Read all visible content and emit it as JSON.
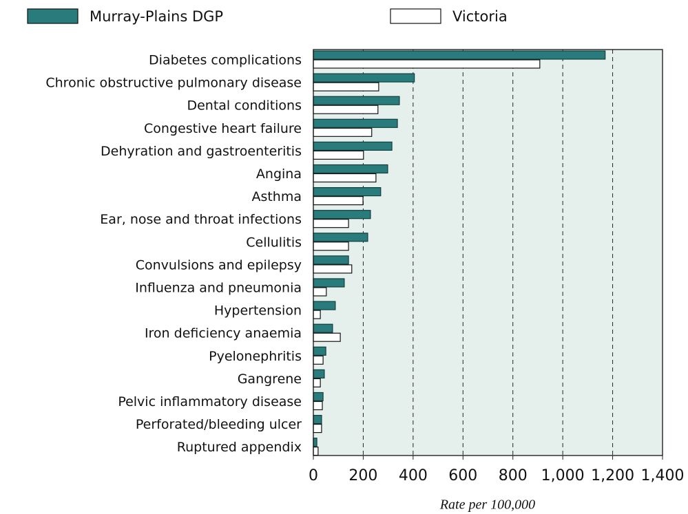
{
  "chart_data": {
    "type": "hbar",
    "xlabel": "Rate per 100,000",
    "categories": [
      "Diabetes complications",
      "Chronic obstructive pulmonary disease",
      "Dental conditions",
      "Congestive heart failure",
      "Dehyration and gastroenteritis",
      "Angina",
      "Asthma",
      "Ear, nose and throat infections",
      "Cellulitis",
      "Convulsions and epilepsy",
      "Influenza and pneumonia",
      "Hypertension",
      "Iron deficiency anaemia",
      "Pyelonephritis",
      "Gangrene",
      "Pelvic inflammatory disease",
      "Perforated/bleeding ulcer",
      "Ruptured appendix"
    ],
    "series": [
      {
        "name": "Murray-Plains DGP",
        "color": "#2a7b7b",
        "values": [
          1170,
          405,
          345,
          337,
          315,
          298,
          270,
          229,
          218,
          141,
          124,
          88,
          77,
          50,
          44,
          39,
          33,
          14
        ]
      },
      {
        "name": "Victoria",
        "color": "#ffffff",
        "values": [
          908,
          262,
          259,
          234,
          201,
          251,
          199,
          141,
          141,
          154,
          52,
          28,
          108,
          39,
          28,
          36,
          33,
          19
        ]
      }
    ],
    "xlim": [
      0,
      1400
    ],
    "xticks": [
      0,
      200,
      400,
      600,
      800,
      {
        "value": 1000,
        "label": "1,000"
      },
      {
        "value": 1200,
        "label": "1,200"
      },
      {
        "value": 1400,
        "label": "1,400"
      }
    ],
    "grid": true
  }
}
